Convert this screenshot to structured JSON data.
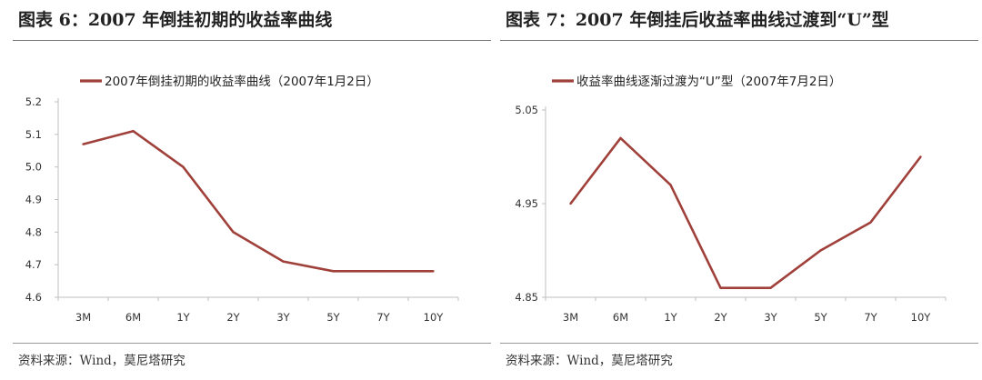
{
  "panels": [
    {
      "title": "图表 6：2007 年倒挂初期的收益率曲线",
      "source": "资料来源：Wind，莫尼塔研究"
    },
    {
      "title": "图表 7：2007 年倒挂后收益率曲线过渡到“U”型",
      "source": "资料来源：Wind，莫尼塔研究"
    }
  ],
  "chart_data": [
    {
      "type": "line",
      "title": "",
      "xlabel": "",
      "ylabel": "",
      "categories": [
        "3M",
        "6M",
        "1Y",
        "2Y",
        "3Y",
        "5Y",
        "7Y",
        "10Y"
      ],
      "series": [
        {
          "name": "2007年倒挂初期的收益率曲线（2007年1月2日）",
          "values": [
            5.07,
            5.11,
            5.0,
            4.8,
            4.71,
            4.68,
            4.68,
            4.68
          ]
        }
      ],
      "ylim": [
        4.6,
        5.2
      ],
      "yticks": [
        "4.6",
        "4.7",
        "4.8",
        "4.9",
        "5.0",
        "5.1",
        "5.2"
      ],
      "grid": false,
      "legend_position": "top-left",
      "color": "#a0403a"
    },
    {
      "type": "line",
      "title": "",
      "xlabel": "",
      "ylabel": "",
      "categories": [
        "3M",
        "6M",
        "1Y",
        "2Y",
        "3Y",
        "5Y",
        "7Y",
        "10Y"
      ],
      "series": [
        {
          "name": "收益率曲线逐渐过渡为“U”型（2007年7月2日）",
          "values": [
            4.95,
            5.02,
            4.97,
            4.86,
            4.86,
            4.9,
            4.93,
            5.0
          ]
        }
      ],
      "ylim": [
        4.85,
        5.05
      ],
      "yticks": [
        "4.85",
        "4.95",
        "5.05"
      ],
      "grid": false,
      "legend_position": "top-left",
      "color": "#a0403a"
    }
  ]
}
